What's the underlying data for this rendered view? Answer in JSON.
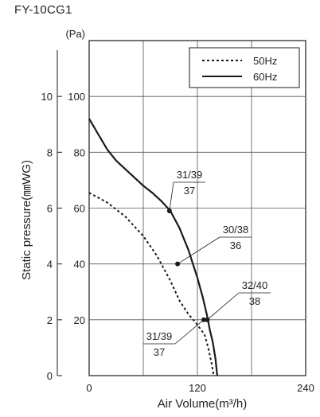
{
  "model": "FY-10CG1",
  "chart_data": {
    "type": "line",
    "xlabel": "Air Volume(m³/h)",
    "ylabel": "Static pressure(㎜WG)",
    "y2label": "(Pa)",
    "xlim": [
      0,
      240
    ],
    "ylim_pa": [
      0,
      120
    ],
    "ylim_mmwg": [
      0,
      12
    ],
    "x_ticks": [
      "0",
      "120",
      "240"
    ],
    "y_ticks_pa": [
      "20",
      "40",
      "60",
      "80",
      "100"
    ],
    "y_ticks_mmwg": [
      "0",
      "2",
      "4",
      "6",
      "8",
      "10"
    ],
    "grid": true,
    "legend_position": "top-right",
    "series": [
      {
        "name": "50Hz",
        "style": "dotted",
        "points": [
          [
            0,
            65.5
          ],
          [
            20,
            62
          ],
          [
            40,
            57
          ],
          [
            60,
            50
          ],
          [
            75,
            43
          ],
          [
            90,
            34
          ],
          [
            100,
            27
          ],
          [
            110,
            22
          ],
          [
            118,
            19
          ],
          [
            124,
            16.5
          ],
          [
            128,
            14.5
          ],
          [
            132,
            10
          ],
          [
            136,
            4
          ],
          [
            138,
            0
          ]
        ]
      },
      {
        "name": "60Hz",
        "style": "solid",
        "points": [
          [
            0,
            92
          ],
          [
            10,
            86.5
          ],
          [
            20,
            81
          ],
          [
            30,
            77
          ],
          [
            40,
            74
          ],
          [
            50,
            71
          ],
          [
            60,
            68
          ],
          [
            70,
            65.5
          ],
          [
            80,
            62.5
          ],
          [
            90,
            59
          ],
          [
            100,
            53
          ],
          [
            110,
            45
          ],
          [
            120,
            35
          ],
          [
            126,
            28
          ],
          [
            131,
            21
          ],
          [
            134,
            16
          ],
          [
            137,
            12
          ],
          [
            140,
            6
          ],
          [
            142,
            0
          ]
        ]
      }
    ],
    "annotations": [
      {
        "x": 89,
        "y": 59,
        "top": "31/39",
        "bottom": "37"
      },
      {
        "x": 98,
        "y": 40,
        "top": "30/38",
        "bottom": "36"
      },
      {
        "x": 131,
        "y": 20,
        "top": "32/40",
        "bottom": "38"
      },
      {
        "x": 127,
        "y": 20,
        "top": "31/39",
        "bottom": "37"
      }
    ],
    "colors": {
      "line": "#1a1a1a",
      "grid": "#555555"
    }
  }
}
